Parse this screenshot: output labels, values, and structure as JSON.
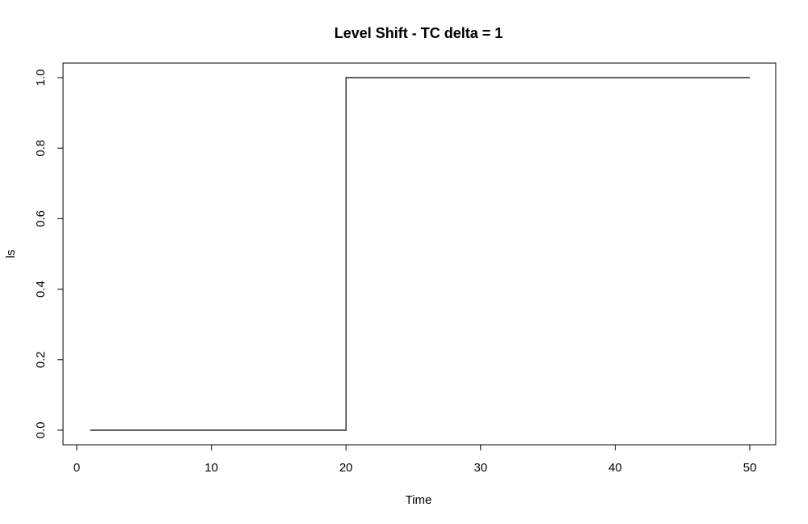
{
  "chart_data": {
    "type": "line",
    "line_style": "step",
    "title": "Level Shift - TC delta = 1",
    "xlabel": "Time",
    "ylabel": "ls",
    "xlim": [
      0,
      50
    ],
    "ylim": [
      0.0,
      1.0
    ],
    "x_ticks": [
      0,
      10,
      20,
      30,
      40,
      50
    ],
    "x_tick_labels": [
      "0",
      "10",
      "20",
      "30",
      "40",
      "50"
    ],
    "y_ticks": [
      0.0,
      0.2,
      0.4,
      0.6,
      0.8,
      1.0
    ],
    "y_tick_labels": [
      "0.0",
      "0.2",
      "0.4",
      "0.6",
      "0.8",
      "1.0"
    ],
    "grid": false,
    "series_color": "#000000",
    "series": [
      {
        "x": [
          1,
          2,
          3,
          4,
          5,
          6,
          7,
          8,
          9,
          10,
          11,
          12,
          13,
          14,
          15,
          16,
          17,
          18,
          19,
          20,
          21,
          22,
          23,
          24,
          25,
          26,
          27,
          28,
          29,
          30,
          31,
          32,
          33,
          34,
          35,
          36,
          37,
          38,
          39,
          40,
          41,
          42,
          43,
          44,
          45,
          46,
          47,
          48,
          49,
          50
        ],
        "values": [
          0,
          0,
          0,
          0,
          0,
          0,
          0,
          0,
          0,
          0,
          0,
          0,
          0,
          0,
          0,
          0,
          0,
          0,
          0,
          1,
          1,
          1,
          1,
          1,
          1,
          1,
          1,
          1,
          1,
          1,
          1,
          1,
          1,
          1,
          1,
          1,
          1,
          1,
          1,
          1,
          1,
          1,
          1,
          1,
          1,
          1,
          1,
          1,
          1,
          1
        ]
      }
    ]
  }
}
